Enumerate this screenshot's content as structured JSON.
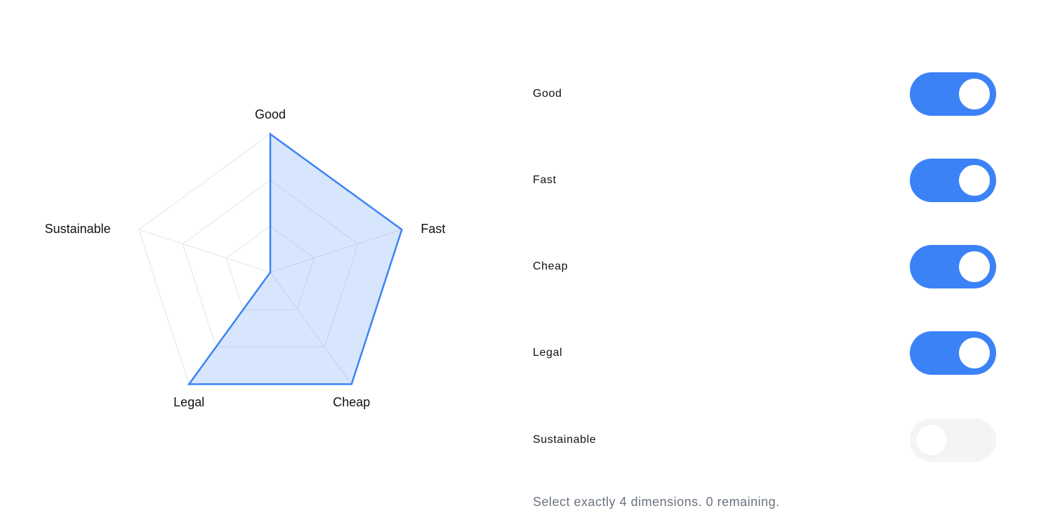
{
  "chart_data": {
    "type": "radar",
    "axes": [
      "Good",
      "Fast",
      "Cheap",
      "Legal",
      "Sustainable"
    ],
    "values": [
      1,
      1,
      1,
      1,
      0
    ],
    "range": [
      0,
      1
    ],
    "grid_levels": 3,
    "fill_color": "#3b82f6"
  },
  "dimensions": [
    {
      "label": "Good",
      "enabled": true
    },
    {
      "label": "Fast",
      "enabled": true
    },
    {
      "label": "Cheap",
      "enabled": true
    },
    {
      "label": "Legal",
      "enabled": true
    },
    {
      "label": "Sustainable",
      "enabled": false
    }
  ],
  "helper_text": "Select exactly 4 dimensions. 0 remaining.",
  "colors": {
    "accent": "#3b82f6",
    "toggle_off": "#f3f4f6",
    "helper": "#6b7280"
  }
}
